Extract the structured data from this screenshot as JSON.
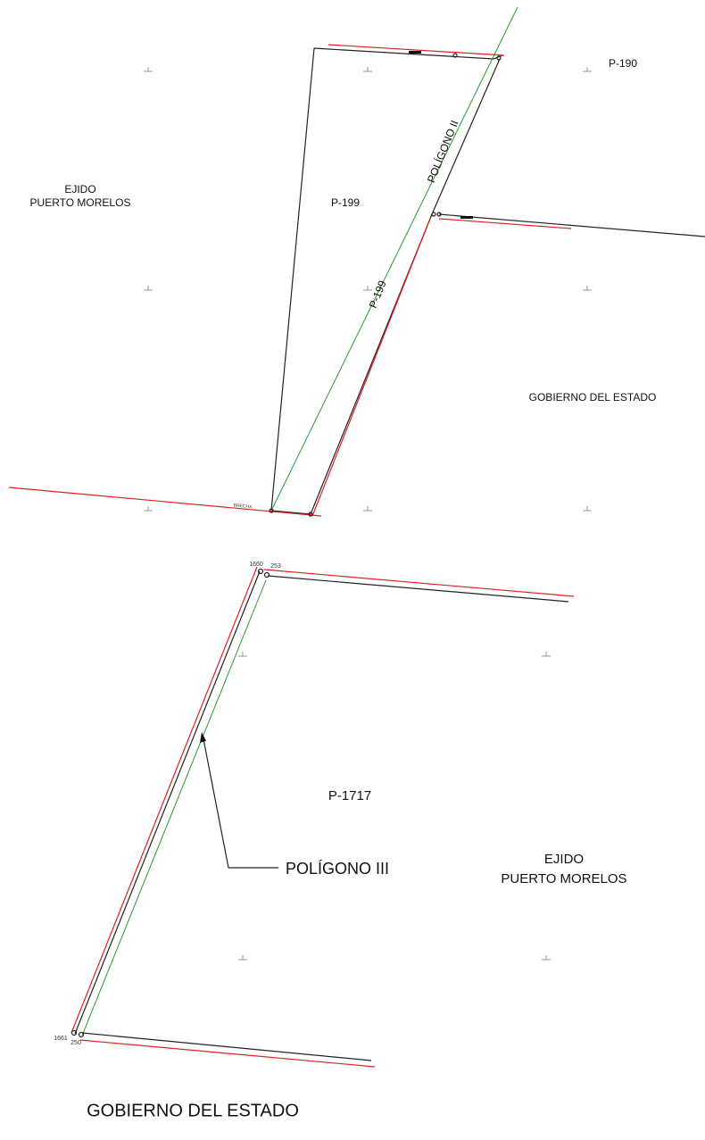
{
  "top_plan": {
    "labels": [
      "P-190",
      "EJIDO",
      "PUERTO MORELOS",
      "P-199",
      "POLÍGONO II",
      "P-199",
      "GOBIERNO DEL ESTADO",
      "BRECHA"
    ]
  },
  "bottom_plan": {
    "labels": [
      "P-1717",
      "POLÍGONO  III",
      "EJIDO",
      "PUERTO MORELOS",
      "GOBIERNO DEL ESTADO",
      "1660",
      "253",
      "1661",
      "250"
    ]
  }
}
